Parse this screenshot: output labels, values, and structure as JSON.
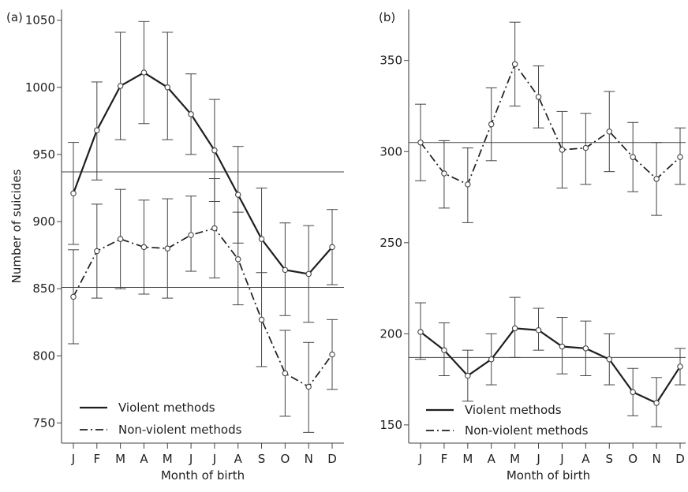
{
  "chart_data": [
    {
      "panel_label": "(a)",
      "type": "line",
      "categories": [
        "J",
        "F",
        "M",
        "A",
        "M",
        "J",
        "J",
        "A",
        "S",
        "O",
        "N",
        "D"
      ],
      "xlabel": "Month of birth",
      "ylabel": "Number of suicides",
      "ylim": [
        735,
        1058
      ],
      "yticks": [
        750,
        800,
        850,
        900,
        950,
        1000,
        1050
      ],
      "reference_lines": [
        937,
        851
      ],
      "legend_position": "bottom-left",
      "series": [
        {
          "name": "Violent methods",
          "style": "solid",
          "values": [
            921,
            968,
            1001,
            1011,
            1000,
            980,
            953,
            920,
            887,
            864,
            861,
            881
          ],
          "ci_low": [
            883,
            931,
            961,
            973,
            961,
            950,
            915,
            884,
            851,
            830,
            825,
            853
          ],
          "ci_high": [
            959,
            1004,
            1041,
            1049,
            1041,
            1010,
            991,
            956,
            925,
            899,
            897,
            909
          ]
        },
        {
          "name": "Non-violent methods",
          "style": "dash-dot",
          "values": [
            844,
            878,
            887,
            881,
            880,
            890,
            895,
            872,
            827,
            787,
            777,
            801
          ],
          "ci_low": [
            809,
            843,
            850,
            846,
            843,
            863,
            858,
            838,
            792,
            755,
            743,
            775
          ],
          "ci_high": [
            879,
            913,
            924,
            916,
            917,
            919,
            932,
            907,
            862,
            819,
            810,
            827
          ]
        }
      ],
      "grid": false
    },
    {
      "panel_label": "(b)",
      "type": "line",
      "categories": [
        "J",
        "F",
        "M",
        "A",
        "M",
        "J",
        "J",
        "A",
        "S",
        "O",
        "N",
        "D"
      ],
      "xlabel": "Month of birth",
      "ylabel": "",
      "ylim": [
        140,
        378
      ],
      "yticks": [
        150,
        200,
        250,
        300,
        350
      ],
      "reference_lines": [
        305,
        187
      ],
      "legend_position": "bottom-left",
      "series": [
        {
          "name": "Violent methods",
          "style": "solid",
          "values": [
            201,
            191,
            177,
            186,
            203,
            202,
            193,
            192,
            186,
            168,
            162,
            182
          ],
          "ci_low": [
            186,
            177,
            163,
            172,
            187,
            191,
            178,
            177,
            172,
            155,
            149,
            172
          ],
          "ci_high": [
            217,
            206,
            191,
            200,
            220,
            214,
            209,
            207,
            200,
            181,
            176,
            192
          ]
        },
        {
          "name": "Non-violent methods",
          "style": "dash-dot",
          "values": [
            305,
            288,
            282,
            315,
            348,
            330,
            301,
            302,
            311,
            297,
            285,
            297
          ],
          "ci_low": [
            284,
            269,
            261,
            295,
            325,
            313,
            280,
            282,
            289,
            278,
            265,
            282
          ],
          "ci_high": [
            326,
            306,
            302,
            335,
            371,
            347,
            322,
            321,
            333,
            316,
            305,
            313
          ]
        }
      ],
      "grid": false
    }
  ]
}
